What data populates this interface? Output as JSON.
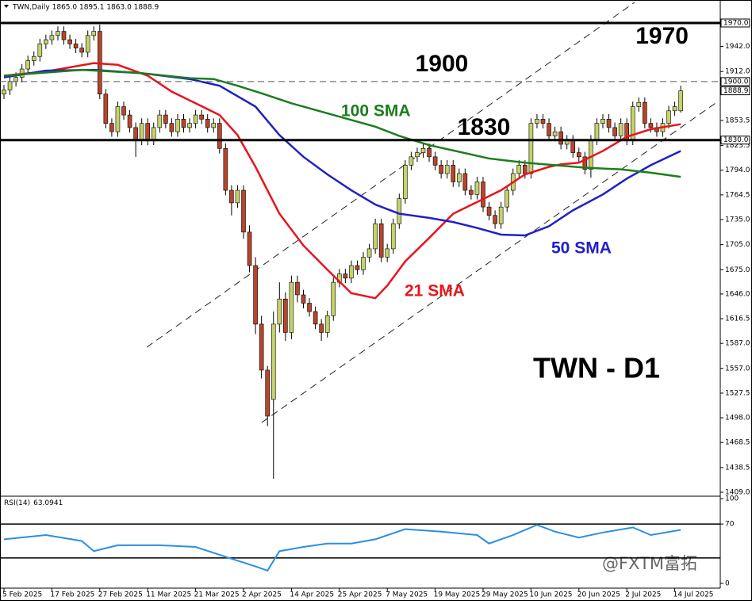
{
  "chart_data": {
    "type": "candlestick",
    "header": "TWN,Daily 1865.0 1895.1 1863.0 1888.9",
    "title": "TWN - D1",
    "categories": [
      "5 Feb 2025",
      null,
      null,
      null,
      null,
      null,
      null,
      null,
      "17 Feb 2025",
      null,
      null,
      null,
      null,
      null,
      null,
      null,
      "27 Feb 2025",
      null,
      null,
      null,
      null,
      null,
      null,
      null,
      "11 Mar 2025",
      null,
      null,
      null,
      null,
      null,
      null,
      null,
      "21 Mar 2025",
      null,
      null,
      null,
      null,
      null,
      null,
      null,
      "2 Apr 2025",
      null,
      null,
      null,
      null,
      null,
      null,
      null,
      "14 Apr 2025",
      null,
      null,
      null,
      null,
      null,
      null,
      null,
      "25 Apr 2025",
      null,
      null,
      null,
      null,
      null,
      null,
      null,
      "7 May 2025",
      null,
      null,
      null,
      null,
      null,
      null,
      null,
      "19 May 2025",
      null,
      null,
      null,
      null,
      null,
      null,
      null,
      "29 May 2025",
      null,
      null,
      null,
      null,
      null,
      null,
      null,
      "10 Jun 2025",
      null,
      null,
      null,
      null,
      null,
      null,
      null,
      "20 Jun 2025",
      null,
      null,
      null,
      null,
      null,
      null,
      null,
      "2 Jul 2025",
      null,
      null,
      null,
      null,
      null,
      null,
      null,
      "14 Jul 2025",
      null
    ],
    "open": [
      1885,
      1890,
      1900,
      1905,
      1915,
      1925,
      1930,
      1945,
      1950,
      1955,
      1960,
      1950,
      1945,
      1940,
      1935,
      1955,
      1960,
      1885,
      1850,
      1840,
      1870,
      1860,
      1845,
      1830,
      1850,
      1830,
      1845,
      1860,
      1850,
      1840,
      1855,
      1845,
      1850,
      1860,
      1855,
      1845,
      1850,
      1820,
      1770,
      1755,
      1770,
      1720,
      1680,
      1610,
      1555,
      1520,
      1610,
      1640,
      1600,
      1660,
      1645,
      1635,
      1625,
      1610,
      1600,
      1620,
      1660,
      1670,
      1665,
      1680,
      1675,
      1690,
      1700,
      1730,
      1690,
      1700,
      1730,
      1760,
      1800,
      1810,
      1815,
      1820,
      1810,
      1800,
      1790,
      1800,
      1780,
      1790,
      1770,
      1765,
      1780,
      1750,
      1740,
      1730,
      1750,
      1770,
      1790,
      1800,
      1790,
      1850,
      1855,
      1850,
      1835,
      1840,
      1825,
      1830,
      1815,
      1810,
      1795,
      1830,
      1850,
      1855,
      1845,
      1835,
      1850,
      1830,
      1870,
      1875,
      1850,
      1845,
      1840,
      1850,
      1865,
      1865
    ],
    "high": [
      1896,
      1906,
      1911,
      1921,
      1931,
      1936,
      1951,
      1956,
      1961,
      1966,
      1966,
      1956,
      1951,
      1946,
      1961,
      1966,
      1968,
      1891,
      1856,
      1876,
      1876,
      1866,
      1851,
      1856,
      1856,
      1851,
      1866,
      1866,
      1856,
      1861,
      1861,
      1856,
      1866,
      1866,
      1861,
      1856,
      1856,
      1826,
      1776,
      1776,
      1776,
      1728,
      1690,
      1620,
      1560,
      1625,
      1660,
      1648,
      1668,
      1668,
      1651,
      1641,
      1631,
      1616,
      1626,
      1666,
      1676,
      1676,
      1686,
      1686,
      1696,
      1706,
      1736,
      1736,
      1706,
      1736,
      1766,
      1806,
      1816,
      1821,
      1826,
      1826,
      1816,
      1806,
      1806,
      1806,
      1796,
      1796,
      1776,
      1786,
      1786,
      1756,
      1746,
      1756,
      1776,
      1796,
      1806,
      1806,
      1856,
      1861,
      1861,
      1856,
      1846,
      1846,
      1836,
      1836,
      1821,
      1816,
      1836,
      1856,
      1861,
      1861,
      1851,
      1856,
      1856,
      1876,
      1881,
      1881,
      1856,
      1851,
      1856,
      1871,
      1876,
      1895.1
    ],
    "low": [
      1879,
      1884,
      1894,
      1899,
      1909,
      1919,
      1924,
      1939,
      1944,
      1949,
      1944,
      1939,
      1934,
      1929,
      1929,
      1949,
      1879,
      1844,
      1834,
      1834,
      1854,
      1839,
      1810,
      1824,
      1824,
      1824,
      1839,
      1844,
      1834,
      1834,
      1839,
      1839,
      1844,
      1849,
      1839,
      1839,
      1814,
      1764,
      1740,
      1749,
      1712,
      1672,
      1598,
      1545,
      1488,
      1425,
      1600,
      1590,
      1592,
      1636,
      1629,
      1619,
      1604,
      1590,
      1594,
      1614,
      1654,
      1659,
      1659,
      1669,
      1669,
      1684,
      1694,
      1684,
      1684,
      1694,
      1724,
      1754,
      1794,
      1804,
      1809,
      1804,
      1794,
      1784,
      1784,
      1774,
      1774,
      1764,
      1759,
      1759,
      1744,
      1734,
      1724,
      1724,
      1744,
      1764,
      1784,
      1784,
      1784,
      1844,
      1844,
      1829,
      1829,
      1819,
      1819,
      1809,
      1804,
      1789,
      1785,
      1824,
      1844,
      1839,
      1829,
      1829,
      1824,
      1824,
      1864,
      1844,
      1839,
      1834,
      1834,
      1844,
      1859,
      1863
    ],
    "close": [
      1890,
      1900,
      1905,
      1915,
      1925,
      1930,
      1945,
      1950,
      1955,
      1960,
      1950,
      1945,
      1940,
      1935,
      1955,
      1960,
      1885,
      1850,
      1840,
      1870,
      1860,
      1845,
      1830,
      1850,
      1830,
      1845,
      1860,
      1850,
      1840,
      1855,
      1845,
      1850,
      1860,
      1855,
      1845,
      1850,
      1820,
      1770,
      1755,
      1770,
      1720,
      1680,
      1610,
      1555,
      1500,
      1610,
      1640,
      1600,
      1660,
      1645,
      1635,
      1625,
      1610,
      1600,
      1620,
      1660,
      1670,
      1665,
      1680,
      1675,
      1690,
      1700,
      1730,
      1690,
      1700,
      1730,
      1760,
      1800,
      1810,
      1815,
      1820,
      1810,
      1800,
      1790,
      1800,
      1780,
      1790,
      1770,
      1765,
      1780,
      1750,
      1740,
      1730,
      1750,
      1770,
      1790,
      1800,
      1790,
      1850,
      1855,
      1850,
      1835,
      1840,
      1825,
      1830,
      1815,
      1810,
      1795,
      1830,
      1850,
      1855,
      1845,
      1835,
      1850,
      1830,
      1870,
      1875,
      1850,
      1845,
      1840,
      1850,
      1865,
      1870,
      1888.9
    ],
    "up_color": "#c6d36a",
    "down_color": "#b8452b",
    "series": [
      {
        "name": "21 SMA",
        "color": "#e8141c",
        "x": [
          0,
          7,
          15,
          19,
          24,
          28,
          32,
          36,
          39,
          42,
          46,
          50,
          54,
          58,
          62,
          64,
          67,
          71,
          75,
          79,
          83,
          87,
          91,
          93,
          96,
          100,
          104,
          108,
          113
        ],
        "values": [
          1907,
          1912,
          1922,
          1920,
          1907,
          1888,
          1874,
          1860,
          1836,
          1798,
          1742,
          1704,
          1675,
          1647,
          1641,
          1656,
          1685,
          1713,
          1742,
          1756,
          1770,
          1789,
          1798,
          1801,
          1803,
          1817,
          1834,
          1843,
          1849
        ]
      },
      {
        "name": "50 SMA",
        "color": "#1f20c8",
        "x": [
          0,
          7,
          15,
          23,
          31,
          36,
          42,
          46,
          50,
          54,
          58,
          62,
          66,
          71,
          75,
          79,
          83,
          87,
          91,
          95,
          100,
          104,
          108,
          113
        ],
        "values": [
          1905,
          1913,
          1914,
          1910,
          1903,
          1895,
          1870,
          1836,
          1810,
          1789,
          1770,
          1753,
          1742,
          1737,
          1732,
          1725,
          1717,
          1716,
          1727,
          1746,
          1765,
          1784,
          1800,
          1817
        ]
      },
      {
        "name": "100 SMA",
        "color": "#1c7d1c",
        "x": [
          0,
          13,
          23,
          31,
          35,
          39,
          43,
          48,
          55,
          62,
          66,
          71,
          76,
          81,
          87,
          92,
          97,
          103,
          108,
          113
        ],
        "values": [
          1907,
          1914,
          1910,
          1904,
          1903,
          1895,
          1886,
          1874,
          1860,
          1846,
          1835,
          1824,
          1816,
          1808,
          1803,
          1800,
          1797,
          1795,
          1791,
          1786
        ]
      }
    ],
    "levels": [
      {
        "value": 1970,
        "label": "1970.0",
        "text": "1970",
        "dashed": false
      },
      {
        "value": 1900,
        "label": "1900.0",
        "text": "1900",
        "dashed": true
      },
      {
        "value": 1830,
        "label": "1830.0",
        "text": "1830",
        "dashed": false
      }
    ],
    "ylim": [
      1409,
      1970
    ],
    "yticks": [
      {
        "value": 1942,
        "label": "1942.0"
      },
      {
        "value": 1912,
        "label": "1912.0"
      },
      {
        "value": 1853.5,
        "label": "1853.5"
      },
      {
        "value": 1823.5,
        "label": "1823.5"
      },
      {
        "value": 1794,
        "label": "1794.0"
      },
      {
        "value": 1764.5,
        "label": "1764.5"
      },
      {
        "value": 1735,
        "label": "1735.0"
      },
      {
        "value": 1705,
        "label": "1705.0"
      },
      {
        "value": 1675,
        "label": "1675.0"
      },
      {
        "value": 1646,
        "label": "1646.0"
      },
      {
        "value": 1616.5,
        "label": "1616.5"
      },
      {
        "value": 1587,
        "label": "1587.0"
      },
      {
        "value": 1557,
        "label": "1557.0"
      },
      {
        "value": 1527.5,
        "label": "1527.5"
      },
      {
        "value": 1498,
        "label": "1498.0"
      },
      {
        "value": 1468.5,
        "label": "1468.5"
      },
      {
        "value": 1438.5,
        "label": "1438.5"
      },
      {
        "value": 1409,
        "label": "1409.0"
      }
    ],
    "rsi": {
      "name": "RSI(14)",
      "color": "#2a8fe0",
      "x": [
        0,
        7,
        13,
        15,
        19,
        26,
        32,
        38,
        42,
        44,
        46,
        50,
        54,
        58,
        62,
        67,
        73,
        79,
        81,
        85,
        89,
        92,
        96,
        100,
        105,
        108,
        113
      ],
      "values": [
        52,
        57,
        50,
        38,
        45,
        45,
        43,
        29,
        20,
        15,
        38,
        43,
        47,
        47,
        52,
        64,
        61,
        57,
        47,
        57,
        69,
        61,
        54,
        60,
        66,
        57,
        63.0941
      ],
      "ylim": [
        0,
        100
      ],
      "yticks": [
        0,
        70,
        100
      ],
      "levels": [
        30,
        70
      ]
    },
    "watermark": "@FXTM富拓"
  }
}
